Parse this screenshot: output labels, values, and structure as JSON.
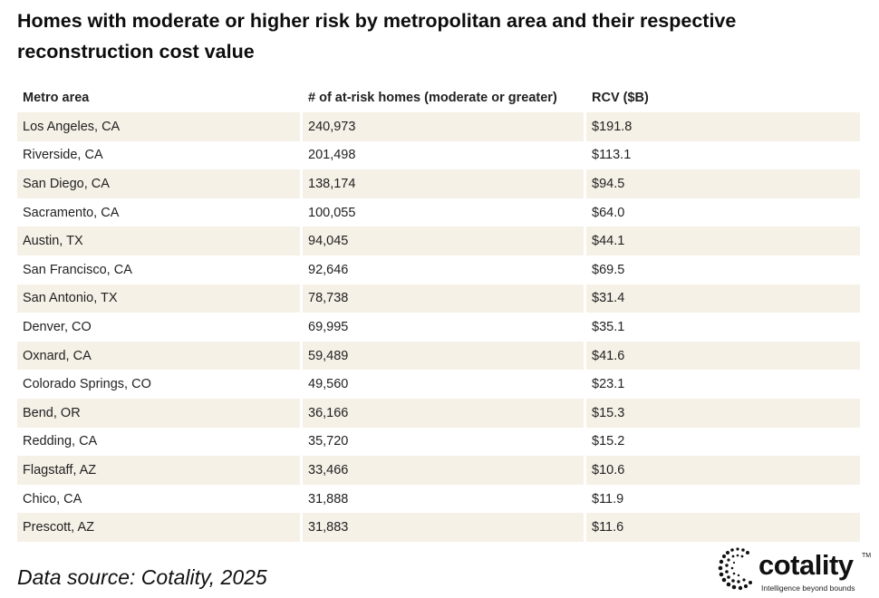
{
  "title": "Homes with moderate or higher risk by metropolitan area and their respective reconstruction cost value",
  "chart_data": {
    "type": "table",
    "columns": [
      "Metro area",
      "# of at-risk homes (moderate or greater)",
      "RCV ($B)"
    ],
    "rows": [
      [
        "Los Angeles, CA",
        "240,973",
        "$191.8"
      ],
      [
        "Riverside, CA",
        "201,498",
        "$113.1"
      ],
      [
        "San Diego, CA",
        "138,174",
        "$94.5"
      ],
      [
        "Sacramento, CA",
        "100,055",
        "$64.0"
      ],
      [
        "Austin, TX",
        "94,045",
        "$44.1"
      ],
      [
        "San Francisco, CA",
        "92,646",
        "$69.5"
      ],
      [
        "San Antonio, TX",
        "78,738",
        "$31.4"
      ],
      [
        "Denver, CO",
        "69,995",
        "$35.1"
      ],
      [
        "Oxnard, CA",
        "59,489",
        "$41.6"
      ],
      [
        "Colorado Springs, CO",
        "49,560",
        "$23.1"
      ],
      [
        "Bend, OR",
        "36,166",
        "$15.3"
      ],
      [
        "Redding, CA",
        "35,720",
        "$15.2"
      ],
      [
        "Flagstaff, AZ",
        "33,466",
        "$10.6"
      ],
      [
        "Chico, CA",
        "31,888",
        "$11.9"
      ],
      [
        "Prescott, AZ",
        "31,883",
        "$11.6"
      ]
    ]
  },
  "source": "Data source: Cotality, 2025",
  "logo": {
    "word": "cotality",
    "tm": "TM",
    "tagline": "Intelligence beyond bounds"
  },
  "colors": {
    "row_shade": "#f6f1e7",
    "text": "#222222"
  }
}
